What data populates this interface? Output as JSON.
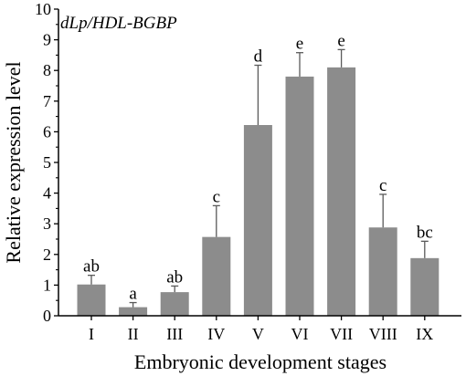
{
  "chart_data": {
    "type": "bar",
    "title": "dLp/HDL-BGBP",
    "xlabel": "Embryonic development stages",
    "ylabel": "Relative expression level",
    "ylim": [
      0,
      10
    ],
    "yticks": [
      "0",
      "1",
      "2",
      "3",
      "4",
      "5",
      "6",
      "7",
      "8",
      "9",
      "10"
    ],
    "categories": [
      "I",
      "II",
      "III",
      "IV",
      "V",
      "VI",
      "VII",
      "VIII",
      "IX"
    ],
    "values": [
      1.02,
      0.28,
      0.77,
      2.57,
      6.22,
      7.8,
      8.1,
      2.88,
      1.88
    ],
    "errors": [
      0.3,
      0.15,
      0.2,
      1.02,
      1.95,
      0.78,
      0.58,
      1.08,
      0.55
    ],
    "significance": [
      "ab",
      "a",
      "ab",
      "c",
      "d",
      "e",
      "e",
      "c",
      "bc"
    ],
    "bar_color": "#8c8c8c",
    "grid": false
  }
}
